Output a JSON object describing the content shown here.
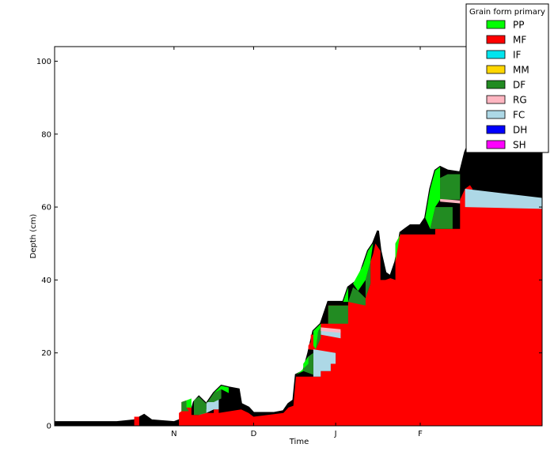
{
  "chart_data": {
    "type": "area",
    "title": "",
    "xlabel": "Time",
    "ylabel": "Depth (cm)",
    "x_ticks": [
      "N",
      "D",
      "J",
      "F"
    ],
    "y_ticks": [
      "0",
      "20",
      "40",
      "60",
      "80",
      "100"
    ],
    "ylim": [
      0,
      104
    ],
    "grid": false,
    "legend": {
      "title": "Grain form primary",
      "placement": "top-right",
      "entries": [
        {
          "label": "PP",
          "color": "#00ff00"
        },
        {
          "label": "MF",
          "color": "#ff0000"
        },
        {
          "label": "IF",
          "color": "#00e5ee"
        },
        {
          "label": "MM",
          "color": "#ffd700"
        },
        {
          "label": "DF",
          "color": "#228b22"
        },
        {
          "label": "RG",
          "color": "#ffb6c1"
        },
        {
          "label": "FC",
          "color": "#add8e6"
        },
        {
          "label": "DH",
          "color": "#0000ff"
        },
        {
          "label": "SH",
          "color": "#ff00ff"
        }
      ]
    },
    "colors": {
      "outline": "#000000"
    },
    "snow_depth_profile": [
      [
        0,
        1
      ],
      [
        25,
        1
      ],
      [
        32,
        1.5
      ],
      [
        36,
        3
      ],
      [
        39,
        1.5
      ],
      [
        48,
        1
      ],
      [
        50,
        1.5
      ],
      [
        55,
        4
      ],
      [
        56,
        6.5
      ],
      [
        58,
        8
      ],
      [
        61,
        6
      ],
      [
        64,
        9
      ],
      [
        67,
        11
      ],
      [
        70,
        10.5
      ],
      [
        74,
        10
      ],
      [
        75,
        6
      ],
      [
        78,
        5
      ],
      [
        80,
        3.5
      ],
      [
        88,
        3.5
      ],
      [
        92,
        4
      ],
      [
        94,
        6
      ],
      [
        96,
        7
      ],
      [
        97,
        14
      ],
      [
        100,
        15
      ],
      [
        102,
        20
      ],
      [
        104,
        26
      ],
      [
        107,
        28
      ],
      [
        110,
        34
      ],
      [
        116,
        34
      ],
      [
        118,
        38
      ],
      [
        120,
        39
      ],
      [
        122,
        40
      ],
      [
        124,
        44
      ],
      [
        126,
        48
      ],
      [
        128,
        50
      ],
      [
        130,
        53.5
      ],
      [
        131,
        48
      ],
      [
        133,
        42
      ],
      [
        135,
        41
      ],
      [
        137,
        45
      ],
      [
        139,
        53
      ],
      [
        141,
        54
      ],
      [
        143,
        55
      ],
      [
        147,
        55
      ],
      [
        149,
        57
      ],
      [
        151,
        65
      ],
      [
        153,
        70
      ],
      [
        155,
        71
      ],
      [
        158,
        70
      ],
      [
        163,
        69.5
      ],
      [
        165,
        75
      ],
      [
        168,
        80
      ],
      [
        172,
        81
      ],
      [
        176,
        82
      ],
      [
        180,
        84
      ],
      [
        185,
        86
      ],
      [
        196,
        88
      ]
    ],
    "layers": [
      {
        "name": "MF",
        "points": [
          [
            32,
            0
          ],
          [
            32,
            2.5
          ],
          [
            34,
            2.5
          ],
          [
            34,
            0
          ],
          [
            50,
            0
          ],
          [
            50,
            3.5
          ],
          [
            51,
            4
          ],
          [
            51,
            6.5
          ],
          [
            53,
            7
          ],
          [
            53,
            6.5
          ],
          [
            54,
            5.5
          ],
          [
            55,
            5
          ],
          [
            55,
            3
          ],
          [
            58,
            3
          ],
          [
            58,
            4.5
          ],
          [
            61,
            4.5
          ],
          [
            61,
            3.5
          ],
          [
            64,
            3.5
          ],
          [
            64,
            4.5
          ],
          [
            66,
            4.5
          ],
          [
            66,
            3.5
          ],
          [
            75,
            4.5
          ],
          [
            78,
            3.5
          ],
          [
            80,
            2.5
          ],
          [
            92,
            3.5
          ],
          [
            94,
            5
          ],
          [
            96,
            5.5
          ],
          [
            97,
            13.5
          ],
          [
            104,
            13.5
          ],
          [
            107,
            13.5
          ],
          [
            107,
            15
          ],
          [
            111,
            15
          ],
          [
            111,
            17
          ],
          [
            113,
            17
          ],
          [
            113,
            20
          ],
          [
            102,
            21
          ],
          [
            102,
            22
          ],
          [
            103,
            23
          ],
          [
            103,
            25
          ],
          [
            107,
            25
          ],
          [
            107,
            28
          ],
          [
            110,
            28
          ],
          [
            110,
            33
          ],
          [
            118,
            33
          ],
          [
            118,
            34
          ],
          [
            122,
            34
          ],
          [
            125,
            35
          ],
          [
            127,
            39
          ],
          [
            127,
            45
          ],
          [
            128,
            47
          ],
          [
            129,
            50
          ],
          [
            131,
            48
          ],
          [
            131,
            40
          ],
          [
            133,
            40
          ],
          [
            135,
            40.5
          ],
          [
            137,
            40
          ],
          [
            137,
            50
          ],
          [
            139,
            52.5
          ],
          [
            153,
            52.5
          ],
          [
            153,
            54
          ],
          [
            163,
            54
          ],
          [
            163,
            62
          ],
          [
            165,
            65
          ],
          [
            167,
            66
          ],
          [
            168,
            65
          ],
          [
            165,
            60
          ],
          [
            168,
            60.5
          ],
          [
            196,
            59.5
          ],
          [
            196,
            0
          ]
        ]
      },
      {
        "name": "FC",
        "points": [
          [
            58,
            4.5
          ],
          [
            61,
            4.5
          ],
          [
            61,
            6.5
          ],
          [
            64,
            6.5
          ],
          [
            64,
            7.5
          ],
          [
            66,
            7.5
          ],
          [
            66,
            4.5
          ],
          [
            64,
            4.5
          ],
          [
            61,
            3.5
          ],
          [
            58,
            3
          ]
        ]
      },
      {
        "name": "FC",
        "points": [
          [
            104,
            13.5
          ],
          [
            107,
            13.5
          ],
          [
            107,
            15
          ],
          [
            111,
            15
          ],
          [
            111,
            17
          ],
          [
            113,
            17
          ],
          [
            113,
            20
          ],
          [
            104,
            21
          ]
        ]
      },
      {
        "name": "FC",
        "points": [
          [
            107,
            25
          ],
          [
            107,
            27
          ],
          [
            115,
            26
          ],
          [
            115,
            24
          ]
        ]
      },
      {
        "name": "FC",
        "points": [
          [
            165,
            60
          ],
          [
            165,
            65
          ],
          [
            196,
            62.5
          ],
          [
            196,
            59.5
          ]
        ]
      },
      {
        "name": "DF",
        "points": [
          [
            51,
            4
          ],
          [
            51,
            6.5
          ],
          [
            53,
            7
          ],
          [
            53,
            5
          ],
          [
            54,
            4
          ]
        ]
      },
      {
        "name": "DF",
        "points": [
          [
            56,
            3
          ],
          [
            56,
            7
          ],
          [
            58,
            8
          ],
          [
            61,
            6
          ],
          [
            61,
            3.5
          ],
          [
            58,
            3
          ]
        ]
      },
      {
        "name": "DF",
        "points": [
          [
            61,
            6
          ],
          [
            64,
            9
          ],
          [
            67,
            10
          ],
          [
            67,
            7.5
          ],
          [
            64,
            6.5
          ],
          [
            61,
            6.5
          ]
        ]
      },
      {
        "name": "DF",
        "points": [
          [
            100,
            15
          ],
          [
            100,
            17
          ],
          [
            102,
            19
          ],
          [
            104,
            20
          ],
          [
            104,
            14
          ]
        ]
      },
      {
        "name": "DF",
        "points": [
          [
            105,
            21
          ],
          [
            106,
            26
          ],
          [
            107,
            27
          ],
          [
            107,
            24
          ]
        ]
      },
      {
        "name": "DF",
        "points": [
          [
            110,
            28
          ],
          [
            110,
            33
          ],
          [
            118,
            33
          ],
          [
            118,
            28
          ]
        ]
      },
      {
        "name": "DF",
        "points": [
          [
            118,
            34
          ],
          [
            120,
            38
          ],
          [
            122,
            37
          ],
          [
            125,
            35
          ],
          [
            125,
            33
          ]
        ]
      },
      {
        "name": "DF",
        "points": [
          [
            125,
            35
          ],
          [
            127,
            39
          ],
          [
            127,
            45
          ],
          [
            125,
            40
          ]
        ]
      },
      {
        "name": "DF",
        "points": [
          [
            151,
            54
          ],
          [
            153,
            60
          ],
          [
            160,
            60
          ],
          [
            160,
            54
          ]
        ]
      },
      {
        "name": "DF",
        "points": [
          [
            155,
            62
          ],
          [
            155,
            68
          ],
          [
            158,
            69
          ],
          [
            163,
            69
          ],
          [
            163,
            62
          ]
        ]
      },
      {
        "name": "PP",
        "points": [
          [
            53,
            7
          ],
          [
            55,
            7.5
          ],
          [
            55,
            5
          ],
          [
            53,
            5
          ]
        ]
      },
      {
        "name": "PP",
        "points": [
          [
            64,
            9
          ],
          [
            67,
            11
          ],
          [
            70,
            10.5
          ],
          [
            70,
            9
          ],
          [
            67,
            10
          ]
        ]
      },
      {
        "name": "PP",
        "points": [
          [
            97,
            14
          ],
          [
            100,
            15
          ],
          [
            100,
            17
          ],
          [
            102,
            19
          ],
          [
            102,
            17
          ],
          [
            99,
            15
          ]
        ]
      },
      {
        "name": "PP",
        "points": [
          [
            104,
            26
          ],
          [
            107,
            28
          ],
          [
            107,
            27
          ],
          [
            106,
            26
          ],
          [
            105,
            21
          ],
          [
            104,
            22
          ]
        ]
      },
      {
        "name": "PP",
        "points": [
          [
            116,
            34
          ],
          [
            118,
            38
          ],
          [
            118,
            34
          ]
        ]
      },
      {
        "name": "PP",
        "points": [
          [
            120,
            39
          ],
          [
            124,
            44
          ],
          [
            126,
            48
          ],
          [
            128,
            50
          ],
          [
            127,
            45
          ],
          [
            125,
            40
          ],
          [
            122,
            37
          ]
        ]
      },
      {
        "name": "PP",
        "points": [
          [
            137,
            45
          ],
          [
            139,
            53
          ],
          [
            139,
            52.5
          ],
          [
            137,
            50
          ]
        ]
      },
      {
        "name": "PP",
        "points": [
          [
            149,
            57
          ],
          [
            151,
            65
          ],
          [
            153,
            70
          ],
          [
            155,
            71
          ],
          [
            155,
            62
          ],
          [
            153,
            60
          ],
          [
            151,
            54
          ]
        ]
      },
      {
        "name": "RG",
        "points": [
          [
            107,
            27
          ],
          [
            115,
            26.5
          ],
          [
            115,
            25.5
          ],
          [
            107,
            26
          ]
        ]
      },
      {
        "name": "RG",
        "points": [
          [
            155,
            61.5
          ],
          [
            163,
            61
          ],
          [
            163,
            61.8
          ],
          [
            155,
            62.2
          ]
        ]
      }
    ]
  }
}
